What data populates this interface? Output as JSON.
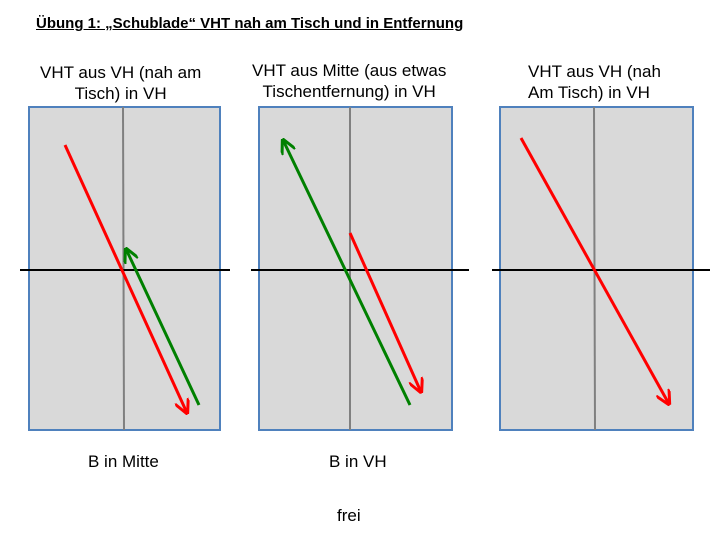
{
  "title": "Übung 1: „Schublade“ VHT nah am Tisch und in Entfernung",
  "panels": [
    {
      "heading_line1": "VHT aus VH (nah am",
      "heading_line2": "Tisch) in VH",
      "caption": "B in Mitte"
    },
    {
      "heading_line1": "VHT aus Mitte (aus etwas",
      "heading_line2": "Tischentfernung) in VH",
      "caption": "B in VH"
    },
    {
      "heading_line1": "VHT aus VH (nah",
      "heading_line2": "Am Tisch) in VH",
      "caption": ""
    }
  ],
  "footer": "frei",
  "colors": {
    "panel_fill": "#d9d9d9",
    "panel_border": "#4f81bd",
    "center_line": "#808080",
    "net_line": "#000000",
    "red_arrow": "#ff0000",
    "green_arrow": "#008000"
  }
}
